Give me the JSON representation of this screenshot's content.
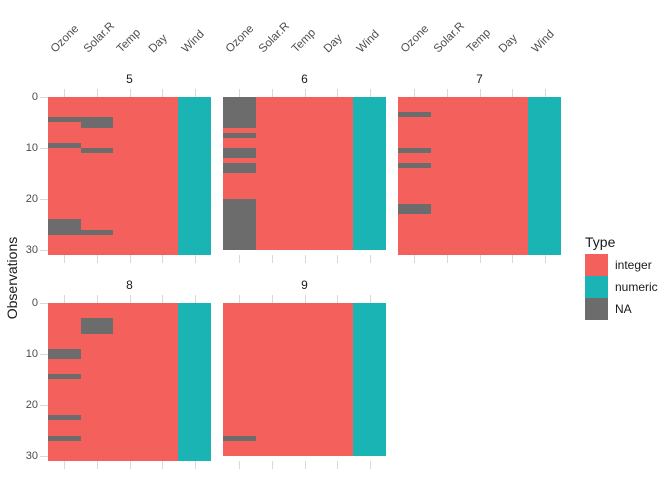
{
  "chart_data": {
    "type": "heatmap",
    "title": "",
    "xlabel": "",
    "ylabel": "Observations",
    "y_ticks": [
      0,
      10,
      20,
      30
    ],
    "y_max": 31,
    "y_axis_reversed": true,
    "grid": false,
    "columns": [
      "Ozone",
      "Solar.R",
      "Temp",
      "Day",
      "Wind"
    ],
    "column_types": [
      "integer",
      "integer",
      "integer",
      "integer",
      "numeric"
    ],
    "colors": {
      "integer": "#f4605c",
      "numeric": "#1ab4b4",
      "NA": "#6c6c6c"
    },
    "legend": {
      "title": "Type",
      "position": "right",
      "items": [
        {
          "label": "integer",
          "color": "#f4605c"
        },
        {
          "label": "numeric",
          "color": "#1ab4b4"
        },
        {
          "label": "NA",
          "color": "#6c6c6c"
        }
      ]
    },
    "facets": [
      {
        "label": "5",
        "n_obs": 31,
        "grid_row": 0,
        "grid_col": 0,
        "na_cells": {
          "Ozone": [
            5,
            10,
            25,
            26,
            27
          ],
          "Solar.R": [
            5,
            6,
            11,
            27
          ]
        }
      },
      {
        "label": "6",
        "n_obs": 30,
        "grid_row": 0,
        "grid_col": 1,
        "na_cells": {
          "Ozone": [
            1,
            2,
            3,
            4,
            5,
            6,
            8,
            11,
            12,
            14,
            15,
            21,
            22,
            23,
            24,
            25,
            26,
            27,
            28,
            29,
            30
          ]
        }
      },
      {
        "label": "7",
        "n_obs": 31,
        "grid_row": 0,
        "grid_col": 2,
        "na_cells": {
          "Ozone": [
            4,
            11,
            14,
            22,
            23
          ]
        }
      },
      {
        "label": "8",
        "n_obs": 31,
        "grid_row": 1,
        "grid_col": 0,
        "na_cells": {
          "Ozone": [
            10,
            11,
            15,
            23,
            27
          ],
          "Solar.R": [
            4,
            5,
            6
          ]
        }
      },
      {
        "label": "9",
        "n_obs": 30,
        "grid_row": 1,
        "grid_col": 1,
        "na_cells": {
          "Ozone": [
            27
          ]
        }
      }
    ]
  }
}
